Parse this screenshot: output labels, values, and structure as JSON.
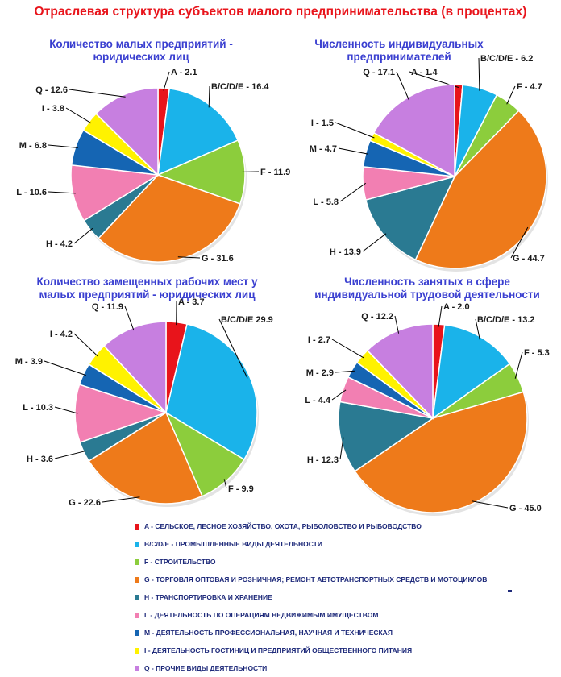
{
  "title": "Отраслевая структура субъектов малого предпринимательства (в процентах)",
  "legend": [
    {
      "key": "A",
      "label": "A - СЕЛЬСКОЕ, ЛЕСНОЕ ХОЗЯЙСТВО, ОХОТА, РЫБОЛОВСТВО И РЫБОВОДСТВО",
      "color": "#e8141b"
    },
    {
      "key": "BCDE",
      "label": "B/C/D/E - ПРОМЫШЛЕННЫЕ ВИДЫ ДЕЯТЕЛЬНОСТИ",
      "color": "#1ab3ea"
    },
    {
      "key": "F",
      "label": "F - СТРОИТЕЛЬСТВО",
      "color": "#8ccd3c"
    },
    {
      "key": "G",
      "label": "G - ТОРГОВЛЯ ОПТОВАЯ И РОЗНИЧНАЯ; РЕМОНТ АВТОТРАНСПОРТНЫХ СРЕДСТВ И МОТОЦИКЛОВ",
      "color": "#ee7a1a"
    },
    {
      "key": "H",
      "label": "H - ТРАНСПОРТИРОВКА И ХРАНЕНИЕ",
      "color": "#2a7a92"
    },
    {
      "key": "L",
      "label": "L - ДЕЯТЕЛЬНОСТЬ ПО ОПЕРАЦИЯМ НЕДВИЖИМЫМ ИМУЩЕСТВОМ",
      "color": "#f27fb2"
    },
    {
      "key": "M",
      "label": "M - ДЕЯТЕЛЬНОСТЬ ПРОФЕССИОНАЛЬНАЯ, НАУЧНАЯ И ТЕХНИЧЕСКАЯ",
      "color": "#1565b3"
    },
    {
      "key": "I",
      "label": "I - ДЕЯТЕЛЬНОСТЬ ГОСТИНИЦ И ПРЕДПРИЯТИЙ ОБЩЕСТВЕННОГО ПИТАНИЯ",
      "color": "#fff200"
    },
    {
      "key": "Q",
      "label": "Q - ПРОЧИЕ ВИДЫ ДЕЯТЕЛЬНОСТИ",
      "color": "#c77fe0"
    }
  ],
  "chart_data": [
    {
      "type": "pie",
      "title": "Количество малых предприятий - юридических лиц",
      "categories": [
        "A",
        "B/C/D/E",
        "F",
        "G",
        "H",
        "L",
        "M",
        "I",
        "Q"
      ],
      "values": [
        2.1,
        16.4,
        11.9,
        31.6,
        4.2,
        10.6,
        6.8,
        3.8,
        12.6
      ],
      "labels": [
        "A - 2.1",
        "B/C/D/E - 16.4",
        "F - 11.9",
        "G - 31.6",
        "H - 4.2",
        "L - 10.6",
        "M - 6.8",
        "I - 3.8",
        "Q - 12.6"
      ]
    },
    {
      "type": "pie",
      "title": "Численность индивидуальных предпринимателей",
      "categories": [
        "A",
        "B/C/D/E",
        "F",
        "G",
        "H",
        "L",
        "M",
        "I",
        "Q"
      ],
      "values": [
        1.4,
        6.2,
        4.7,
        44.7,
        13.9,
        5.8,
        4.7,
        1.5,
        17.1
      ],
      "labels": [
        "A - 1.4",
        "B/C/D/E - 6.2",
        "F - 4.7",
        "G - 44.7",
        "H - 13.9",
        "L - 5.8",
        "M - 4.7",
        "I - 1.5",
        "Q - 17.1"
      ]
    },
    {
      "type": "pie",
      "title": "Количество замещенных рабочих мест у малых предприятий - юридических лиц",
      "categories": [
        "A",
        "B/C/D/E",
        "F",
        "G",
        "H",
        "L",
        "M",
        "I",
        "Q"
      ],
      "values": [
        3.7,
        29.9,
        9.9,
        22.6,
        3.6,
        10.3,
        3.9,
        4.2,
        11.9
      ],
      "labels": [
        "A - 3.7",
        "B/C/D/E  29.9",
        "F - 9.9",
        "G - 22.6",
        "H - 3.6",
        "L - 10.3",
        "M - 3.9",
        "I - 4.2",
        "Q - 11.9"
      ]
    },
    {
      "type": "pie",
      "title": "Численность занятых в сфере индивидуальной трудовой деятельности",
      "categories": [
        "A",
        "B/C/D/E",
        "F",
        "G",
        "H",
        "L",
        "M",
        "I",
        "Q"
      ],
      "values": [
        2.0,
        13.2,
        5.3,
        45.0,
        12.3,
        4.4,
        2.9,
        2.7,
        12.2
      ],
      "labels": [
        "A - 2.0",
        "B/C/D/E - 13.2",
        "F - 5.3",
        "G - 45.0",
        "H - 12.3",
        "L - 4.4",
        "M - 2.9",
        "I -  2.7",
        "Q -  12.2"
      ]
    }
  ]
}
